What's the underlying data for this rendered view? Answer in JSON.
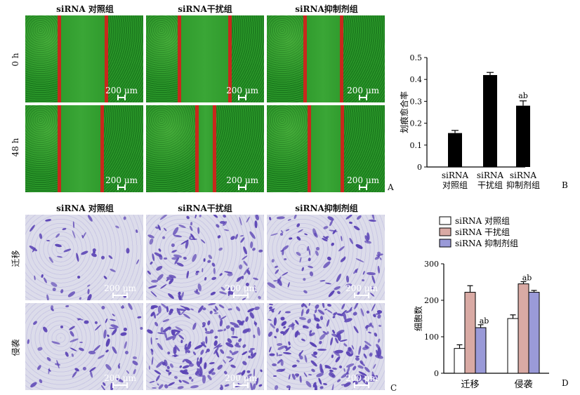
{
  "panel_A": {
    "columns": [
      "siRNA 对照组",
      "siRNA干扰组",
      "siRNA抑制剂组"
    ],
    "rows": [
      "0 h",
      "48 h"
    ],
    "scale_label": "200 μm",
    "letter": "A"
  },
  "panel_C": {
    "columns": [
      "siRNA 对照组",
      "siRNA干扰组",
      "siRNA抑制剂组"
    ],
    "rows": [
      "迁移",
      "侵袭"
    ],
    "scale_label": "200 μm",
    "letter": "C"
  },
  "chart_data": [
    {
      "type": "bar",
      "panel": "B",
      "ylabel": "划痕愈合率",
      "ylim": [
        0,
        0.5
      ],
      "yticks": [
        0,
        0.1,
        0.2,
        0.3,
        0.4,
        0.5
      ],
      "categories": [
        [
          "siRNA",
          "对照组"
        ],
        [
          "siRNA",
          "干扰组"
        ],
        [
          "siRNA",
          "抑制剂组"
        ]
      ],
      "values": [
        0.155,
        0.42,
        0.28
      ],
      "errors": [
        0.012,
        0.012,
        0.022
      ],
      "annotations": [
        "",
        "",
        "ab"
      ],
      "bar_color": "#000000"
    },
    {
      "type": "bar",
      "panel": "D",
      "ylabel": "细胞数",
      "ylim": [
        0,
        300
      ],
      "yticks": [
        0,
        100,
        200,
        300
      ],
      "categories": [
        "迁移",
        "侵袭"
      ],
      "series": [
        {
          "name": "siRNA 对照组",
          "color": "#ffffff",
          "values": [
            68,
            150
          ],
          "errors": [
            10,
            10
          ]
        },
        {
          "name": "siRNA 干扰组",
          "color": "#d9aaa4",
          "values": [
            222,
            245
          ],
          "errors": [
            18,
            6
          ]
        },
        {
          "name": "siRNA 抑制剂组",
          "color": "#9a9ad8",
          "values": [
            125,
            222
          ],
          "errors": [
            8,
            5
          ]
        }
      ],
      "annotations": [
        [
          "",
          "",
          "ab"
        ],
        [
          "",
          "ab",
          ""
        ]
      ],
      "legend": "top-left"
    }
  ]
}
